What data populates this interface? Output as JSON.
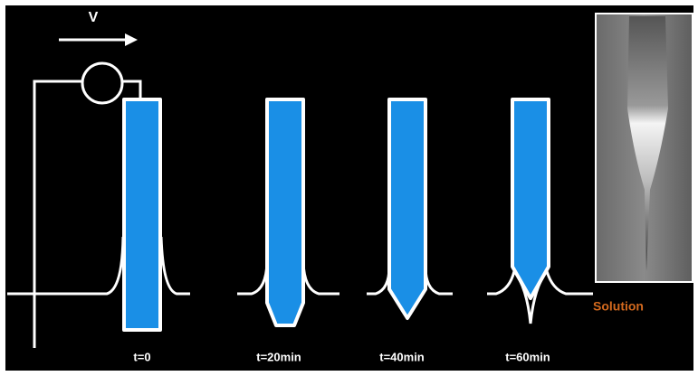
{
  "voltage_label": "V",
  "stages": [
    {
      "label": "t=0"
    },
    {
      "label": "t=20min"
    },
    {
      "label": "t=40min"
    },
    {
      "label": "t=60min"
    }
  ],
  "solution_label": "Solution"
}
